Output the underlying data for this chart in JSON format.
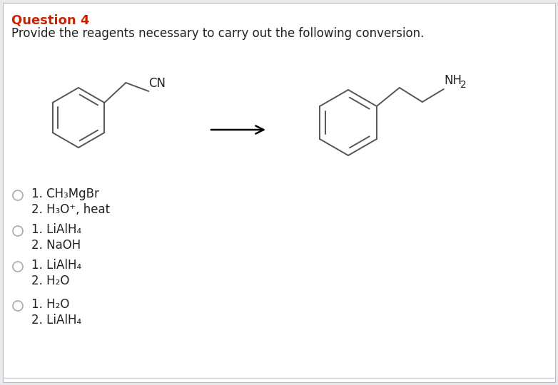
{
  "title": "Question 4",
  "title_color": "#cc2200",
  "subtitle": "Provide the reagents necessary to carry out the following conversion.",
  "subtitle_color": "#222222",
  "bg_color": "#e8eaed",
  "panel_color": "#ffffff",
  "options": [
    [
      "1. CH₃MgBr",
      "2. H₃O⁺, heat"
    ],
    [
      "1. LiAlH₄",
      "2. NaOH"
    ],
    [
      "1. LiAlH₄",
      "2. H₂O"
    ],
    [
      "1. H₂O",
      "2. LiAlH₄"
    ]
  ],
  "font_size_title": 13,
  "font_size_subtitle": 12,
  "font_size_options": 12
}
